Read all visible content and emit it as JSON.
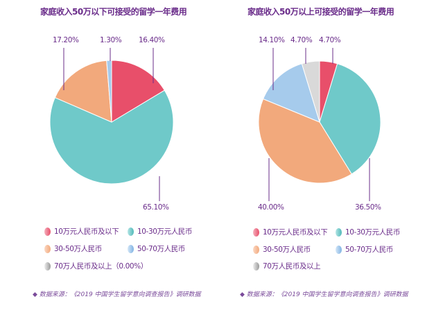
{
  "colors": {
    "c0": "#e84f6a",
    "c1": "#6fc9c9",
    "c2": "#f2a97c",
    "c3": "#a6cbec",
    "c4": "#d9d9d9"
  },
  "chart_data": [
    {
      "type": "pie",
      "title": "家庭收入50万以下可接受的留学一年费用",
      "categories": [
        "10万元人民币及以下",
        "10-30万元人民币",
        "30-50万人民币",
        "50-70万人民币",
        "70万人民币及以上（0.00%）"
      ],
      "values": [
        16.4,
        65.1,
        17.2,
        1.3,
        0.0
      ],
      "labels": [
        "16.40%",
        "65.10%",
        "17.20%",
        "1.30%"
      ],
      "source": "◆ 数据来源：《2019 中国学生留学意向调查报告》调研数据"
    },
    {
      "type": "pie",
      "title": "家庭收入50万以上可接受的留学一年费用",
      "categories": [
        "10万元人民币及以下",
        "10-30万元人民币",
        "30-50万人民币",
        "50-70万人民币",
        "70万人民币及以上"
      ],
      "values": [
        4.7,
        36.5,
        40.0,
        14.1,
        4.7
      ],
      "labels": [
        "4.70%",
        "36.50%",
        "40.00%",
        "14.10%",
        "4.70%"
      ],
      "source": "◆ 数据来源：《2019 中国学生留学意向调查报告》调研数据"
    }
  ]
}
